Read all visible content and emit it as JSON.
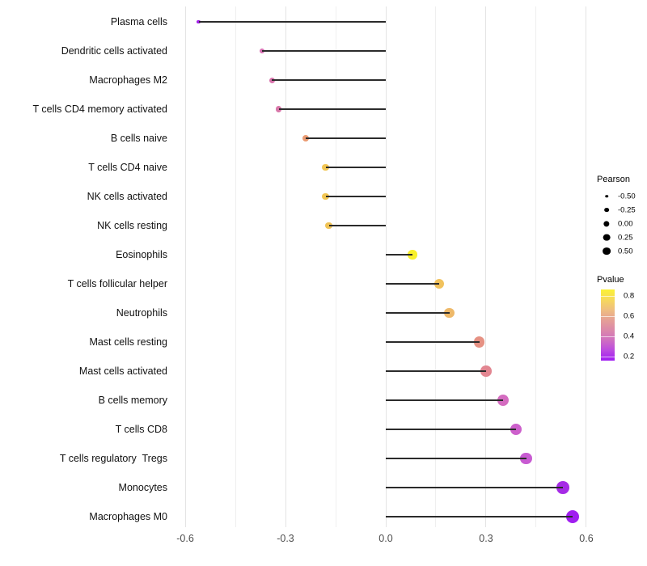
{
  "figure": {
    "background": "#ffffff"
  },
  "chart_data": {
    "type": "scatter",
    "variant": "lollipop",
    "orientation": "horizontal",
    "title": "",
    "xlabel": "",
    "ylabel": "",
    "xlim": [
      -0.635,
      0.635
    ],
    "x_ticks_major": [
      -0.6,
      -0.3,
      0.0,
      0.3,
      0.6
    ],
    "x_tick_labels": [
      "-0.6",
      "-0.3",
      "0.0",
      "0.3",
      "0.6"
    ],
    "x_ticks_minor": [
      -0.45,
      -0.15,
      0.15,
      0.45
    ],
    "grid": "vertical-only",
    "baseline_x": 0.0,
    "categories": [
      "Plasma cells",
      "Dendritic cells activated",
      "Macrophages M2",
      "T cells CD4 memory activated",
      "B cells naive",
      "T cells CD4 naive",
      "NK cells activated",
      "NK cells resting",
      "Eosinophils",
      "T cells follicular helper",
      "Neutrophils",
      "Mast cells resting",
      "Mast cells activated",
      "B cells memory",
      "T cells CD8",
      "T cells regulatory  Tregs",
      "Monocytes",
      "Macrophages M0"
    ],
    "series": [
      {
        "name": "Pearson",
        "values": [
          -0.56,
          -0.37,
          -0.34,
          -0.32,
          -0.24,
          -0.18,
          -0.18,
          -0.17,
          0.08,
          0.16,
          0.19,
          0.28,
          0.3,
          0.35,
          0.39,
          0.42,
          0.53,
          0.56
        ]
      },
      {
        "name": "Pvalue",
        "values": [
          0.2,
          0.42,
          0.44,
          0.45,
          0.57,
          0.68,
          0.68,
          0.68,
          0.87,
          0.68,
          0.65,
          0.52,
          0.48,
          0.4,
          0.36,
          0.33,
          0.23,
          0.19
        ]
      }
    ],
    "point_colors": [
      "#A21EE8",
      "#D66FB2",
      "#D873AC",
      "#D877A9",
      "#EB9B72",
      "#F2C653",
      "#F2C653",
      "#F0C356",
      "#F8F02B",
      "#F1C25D",
      "#EEB96A",
      "#E69183",
      "#E28691",
      "#D46CC0",
      "#CD60CC",
      "#C85BD2",
      "#A62BE6",
      "#A01EF0"
    ],
    "stem_color": "#2b2b2b",
    "gridline_color_major": "#e4e4e4",
    "gridline_color_minor": "#efefef",
    "axis_text_color": "#4d4d4d",
    "label_text_color": "#111111"
  },
  "legends": {
    "pearson": {
      "title": "Pearson",
      "labels": [
        "-0.50",
        "-0.25",
        "0.00",
        "0.25",
        "0.50"
      ],
      "dot_color": "#000000"
    },
    "pvalue": {
      "title": "Pvalue",
      "tick_labels": [
        "0.8",
        "0.6",
        "0.4",
        "0.2"
      ],
      "gradient_top_to_bottom": [
        "#FBF235",
        "#F6D95C",
        "#EFBE80",
        "#E5A096",
        "#DB88AA",
        "#CF6FC1",
        "#BB4AE0",
        "#A01BF2"
      ]
    }
  }
}
